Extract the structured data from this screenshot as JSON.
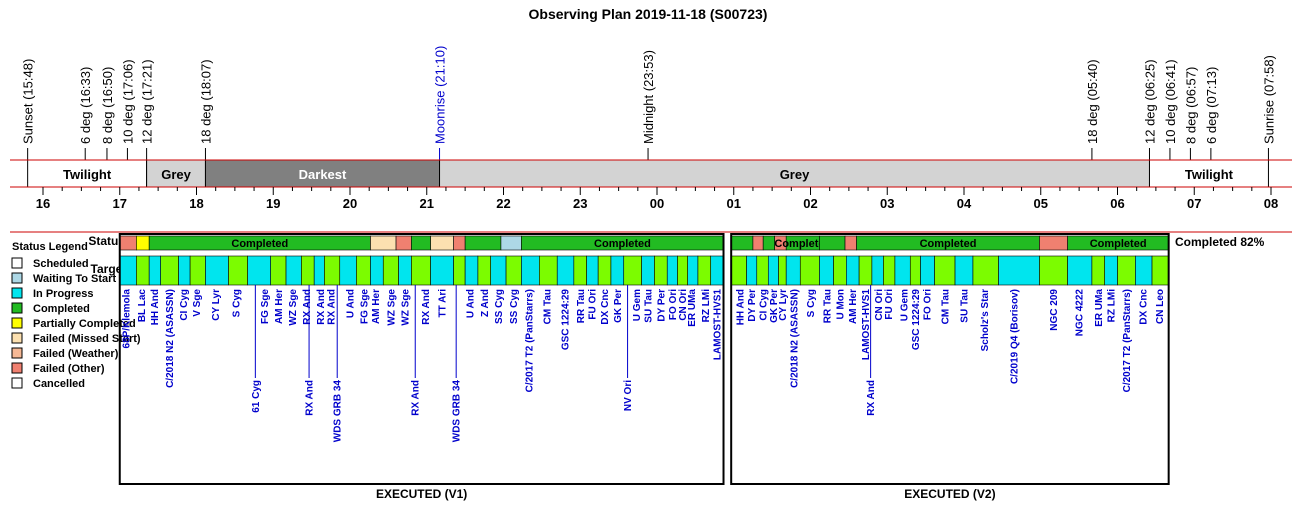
{
  "chart_data": {
    "type": "timeline",
    "title": "Observing Plan 2019-11-18 (S00723)",
    "events": [
      {
        "label": "Sunset (15:48)",
        "time": "15:48",
        "color": "#000000"
      },
      {
        "label": "6 deg (16:33)",
        "time": "16:33",
        "color": "#000000"
      },
      {
        "label": "8 deg (16:50)",
        "time": "16:50",
        "color": "#000000"
      },
      {
        "label": "10 deg (17:06)",
        "time": "17:06",
        "color": "#000000"
      },
      {
        "label": "12 deg (17:21)",
        "time": "17:21",
        "color": "#000000"
      },
      {
        "label": "18 deg (18:07)",
        "time": "18:07",
        "color": "#000000"
      },
      {
        "label": "Moonrise (21:10)",
        "time": "21:10",
        "color": "#0000cc"
      },
      {
        "label": "Midnight (23:53)",
        "time": "23:53",
        "color": "#000000"
      },
      {
        "label": "18 deg (05:40)",
        "time": "05:40",
        "color": "#000000"
      },
      {
        "label": "12 deg (06:25)",
        "time": "06:25",
        "color": "#000000"
      },
      {
        "label": "10 deg (06:41)",
        "time": "06:41",
        "color": "#000000"
      },
      {
        "label": "8 deg (06:57)",
        "time": "06:57",
        "color": "#000000"
      },
      {
        "label": "6 deg (07:13)",
        "time": "07:13",
        "color": "#000000"
      },
      {
        "label": "Sunrise (07:58)",
        "time": "07:58",
        "color": "#000000"
      }
    ],
    "sky_periods": [
      {
        "label": "Twilight",
        "start": "15:48",
        "end": "17:21",
        "color": "#ffffff",
        "text_color": "#000000"
      },
      {
        "label": "Grey",
        "start": "17:21",
        "end": "18:07",
        "color": "#d3d3d3",
        "text_color": "#000000"
      },
      {
        "label": "Darkest",
        "start": "18:07",
        "end": "21:10",
        "color": "#808080",
        "text_color": "#ffffff"
      },
      {
        "label": "Grey",
        "start": "21:10",
        "end": "06:25",
        "color": "#d3d3d3",
        "text_color": "#000000"
      },
      {
        "label": "Twilight",
        "start": "06:25",
        "end": "07:58",
        "color": "#ffffff",
        "text_color": "#000000"
      }
    ],
    "hour_ticks": [
      "16",
      "17",
      "18",
      "19",
      "20",
      "21",
      "22",
      "23",
      "00",
      "01",
      "02",
      "03",
      "04",
      "05",
      "06",
      "07",
      "08"
    ],
    "status_row_label": "Status",
    "targets_row_label": "Targets",
    "completion_text": "Completed 82%",
    "legend_title": "Status Legend",
    "legend": [
      {
        "label": "Scheduled",
        "color": "#ffffff"
      },
      {
        "label": "Waiting To Start",
        "color": "#add8e6"
      },
      {
        "label": "In Progress",
        "color": "#00e5ee"
      },
      {
        "label": "Completed",
        "color": "#22bb22"
      },
      {
        "label": "Partially Completed",
        "color": "#ffff00"
      },
      {
        "label": "Failed (Missed Start)",
        "color": "#fce0b0"
      },
      {
        "label": "Failed (Weather)",
        "color": "#f5b895"
      },
      {
        "label": "Failed (Other)",
        "color": "#f08070"
      },
      {
        "label": "Cancelled",
        "color": "#ffffff"
      }
    ],
    "status_segments": [
      {
        "start": "17:00",
        "end": "17:13",
        "status": "Failed (Other)",
        "label": ""
      },
      {
        "start": "17:13",
        "end": "17:23",
        "status": "Partially Completed",
        "label": ""
      },
      {
        "start": "17:23",
        "end": "20:16",
        "status": "Completed",
        "label": "Completed"
      },
      {
        "start": "20:16",
        "end": "20:36",
        "status": "Failed (Missed Start)",
        "label": ""
      },
      {
        "start": "20:36",
        "end": "20:48",
        "status": "Failed (Other)",
        "label": ""
      },
      {
        "start": "20:48",
        "end": "21:03",
        "status": "Completed",
        "label": ""
      },
      {
        "start": "21:03",
        "end": "21:21",
        "status": "Failed (Missed Start)",
        "label": ""
      },
      {
        "start": "21:21",
        "end": "21:30",
        "status": "Failed (Other)",
        "label": ""
      },
      {
        "start": "21:30",
        "end": "21:58",
        "status": "Completed",
        "label": ""
      },
      {
        "start": "21:58",
        "end": "22:14",
        "status": "Waiting To Start",
        "label": ""
      },
      {
        "start": "22:14",
        "end": "00:52",
        "status": "Completed",
        "label": "Completed"
      },
      {
        "start": "00:58",
        "end": "01:15",
        "status": "Completed",
        "label": ""
      },
      {
        "start": "01:15",
        "end": "01:23",
        "status": "Failed (Other)",
        "label": ""
      },
      {
        "start": "01:23",
        "end": "01:32",
        "status": "Completed",
        "label": ""
      },
      {
        "start": "01:32",
        "end": "01:41",
        "status": "Failed (Other)",
        "label": ""
      },
      {
        "start": "01:41",
        "end": "02:07",
        "status": "Completed",
        "label": "Completed"
      },
      {
        "start": "02:07",
        "end": "02:27",
        "status": "Completed",
        "label": ""
      },
      {
        "start": "02:27",
        "end": "02:36",
        "status": "Failed (Other)",
        "label": ""
      },
      {
        "start": "02:36",
        "end": "04:59",
        "status": "Completed",
        "label": "Completed"
      },
      {
        "start": "04:59",
        "end": "05:21",
        "status": "Failed (Other)",
        "label": ""
      },
      {
        "start": "05:21",
        "end": "06:40",
        "status": "Completed",
        "label": "Completed"
      }
    ],
    "executions": [
      {
        "label": "EXECUTED (V1)",
        "start": "17:00",
        "end": "00:52"
      },
      {
        "label": "EXECUTED (V2)",
        "start": "00:58",
        "end": "06:40"
      }
    ],
    "targets": [
      {
        "name": "68P/Klemola",
        "time": "17:05",
        "row": 0
      },
      {
        "name": "BL Lac",
        "time": "17:17",
        "row": 0
      },
      {
        "name": "HH And",
        "time": "17:27",
        "row": 0
      },
      {
        "name": "C/2018 N2 (ASASSN)",
        "time": "17:39",
        "row": 0
      },
      {
        "name": "CI Cyg",
        "time": "17:50",
        "row": 0
      },
      {
        "name": "V Sge",
        "time": "18:00",
        "row": 0
      },
      {
        "name": "CY Lyr",
        "time": "18:15",
        "row": 0
      },
      {
        "name": "S Cyg",
        "time": "18:31",
        "row": 0
      },
      {
        "name": "61 Cyg",
        "time": "18:46",
        "row": 1
      },
      {
        "name": "FG Sge",
        "time": "18:53",
        "row": 0
      },
      {
        "name": "AM Her",
        "time": "19:04",
        "row": 0
      },
      {
        "name": "WZ Sge",
        "time": "19:15",
        "row": 0
      },
      {
        "name": "RX And",
        "time": "19:26",
        "row": 0
      },
      {
        "name": "RX And",
        "time": "19:28",
        "row": 1
      },
      {
        "name": "RX And",
        "time": "19:37",
        "row": 0
      },
      {
        "name": "RX And",
        "time": "19:45",
        "row": 0
      },
      {
        "name": "WDS GRB 34",
        "time": "19:50",
        "row": 1
      },
      {
        "name": "U And",
        "time": "20:00",
        "row": 0
      },
      {
        "name": "FG Sge",
        "time": "20:11",
        "row": 0
      },
      {
        "name": "AM Her",
        "time": "20:20",
        "row": 0
      },
      {
        "name": "WZ Sge",
        "time": "20:32",
        "row": 0
      },
      {
        "name": "WZ Sge",
        "time": "20:43",
        "row": 0
      },
      {
        "name": "RX And",
        "time": "20:51",
        "row": 1
      },
      {
        "name": "RX And",
        "time": "20:59",
        "row": 0
      },
      {
        "name": "TT Ari",
        "time": "21:12",
        "row": 0
      },
      {
        "name": "WDS GRB 34",
        "time": "21:23",
        "row": 1
      },
      {
        "name": "U And",
        "time": "21:34",
        "row": 0
      },
      {
        "name": "Z And",
        "time": "21:45",
        "row": 0
      },
      {
        "name": "SS Cyg",
        "time": "21:56",
        "row": 0
      },
      {
        "name": "SS Cyg",
        "time": "22:08",
        "row": 0
      },
      {
        "name": "C/2017 T2 (PanStarrs)",
        "time": "22:20",
        "row": 0
      },
      {
        "name": "CM Tau",
        "time": "22:34",
        "row": 0
      },
      {
        "name": "GSC 1224:29",
        "time": "22:48",
        "row": 0
      },
      {
        "name": "RR Tau",
        "time": "23:00",
        "row": 0
      },
      {
        "name": "FU Ori",
        "time": "23:09",
        "row": 0
      },
      {
        "name": "DX Cnc",
        "time": "23:19",
        "row": 0
      },
      {
        "name": "GK Per",
        "time": "23:29",
        "row": 0
      },
      {
        "name": "NV Ori",
        "time": "23:37",
        "row": 1
      },
      {
        "name": "U Gem",
        "time": "23:44",
        "row": 0
      },
      {
        "name": "SU Tau",
        "time": "23:53",
        "row": 0
      },
      {
        "name": "DY Per",
        "time": "00:03",
        "row": 0
      },
      {
        "name": "FO Ori",
        "time": "00:12",
        "row": 0
      },
      {
        "name": "CN Ori",
        "time": "00:20",
        "row": 0
      },
      {
        "name": "ER UMa",
        "time": "00:27",
        "row": 0
      },
      {
        "name": "RZ LMi",
        "time": "00:38",
        "row": 0
      },
      {
        "name": "LAMOST-HVS1",
        "time": "00:47",
        "row": 0
      },
      {
        "name": "HH And",
        "time": "01:05",
        "row": 0
      },
      {
        "name": "DY Per",
        "time": "01:14",
        "row": 0
      },
      {
        "name": "CI Cyg",
        "time": "01:23",
        "row": 0
      },
      {
        "name": "GK Per",
        "time": "01:31",
        "row": 0
      },
      {
        "name": "CY Lyr",
        "time": "01:38",
        "row": 0
      },
      {
        "name": "C/2018 N2 (ASASSN)",
        "time": "01:47",
        "row": 0
      },
      {
        "name": "S Cyg",
        "time": "02:00",
        "row": 0
      },
      {
        "name": "RR Tau",
        "time": "02:13",
        "row": 0
      },
      {
        "name": "U Mon",
        "time": "02:23",
        "row": 0
      },
      {
        "name": "AM Her",
        "time": "02:33",
        "row": 0
      },
      {
        "name": "LAMOST-HVS1",
        "time": "02:43",
        "row": 0
      },
      {
        "name": "RX And",
        "time": "02:47",
        "row": 1
      },
      {
        "name": "CN Ori",
        "time": "02:53",
        "row": 0
      },
      {
        "name": "FU Ori",
        "time": "03:01",
        "row": 0
      },
      {
        "name": "U Gem",
        "time": "03:13",
        "row": 0
      },
      {
        "name": "GSC 1224:29",
        "time": "03:22",
        "row": 0
      },
      {
        "name": "FO Ori",
        "time": "03:31",
        "row": 0
      },
      {
        "name": "CM Tau",
        "time": "03:45",
        "row": 0
      },
      {
        "name": "SU Tau",
        "time": "04:00",
        "row": 0
      },
      {
        "name": "Scholz's Star",
        "time": "04:16",
        "row": 0
      },
      {
        "name": "C/2019 Q4 (Borisov)",
        "time": "04:39",
        "row": 0
      },
      {
        "name": "NGC 209",
        "time": "05:10",
        "row": 0
      },
      {
        "name": "NGC 4222",
        "time": "05:30",
        "row": 0
      },
      {
        "name": "ER UMa",
        "time": "05:45",
        "row": 0
      },
      {
        "name": "RZ LMi",
        "time": "05:55",
        "row": 0
      },
      {
        "name": "C/2017 T2 (PanStarrs)",
        "time": "06:07",
        "row": 0
      },
      {
        "name": "DX Cnc",
        "time": "06:20",
        "row": 0
      },
      {
        "name": "CN Leo",
        "time": "06:33",
        "row": 0
      }
    ],
    "target_bar_slots": [
      {
        "start": "17:00",
        "end": "17:13",
        "color": "#00e5ee"
      },
      {
        "start": "17:13",
        "end": "17:23",
        "color": "#7cfc00"
      },
      {
        "start": "17:23",
        "end": "17:32",
        "color": "#00e5ee"
      },
      {
        "start": "17:32",
        "end": "17:46",
        "color": "#7cfc00"
      },
      {
        "start": "17:46",
        "end": "17:55",
        "color": "#00e5ee"
      },
      {
        "start": "17:55",
        "end": "18:07",
        "color": "#7cfc00"
      },
      {
        "start": "18:07",
        "end": "18:25",
        "color": "#00e5ee"
      },
      {
        "start": "18:25",
        "end": "18:40",
        "color": "#7cfc00"
      },
      {
        "start": "18:40",
        "end": "18:58",
        "color": "#00e5ee"
      },
      {
        "start": "18:58",
        "end": "19:10",
        "color": "#7cfc00"
      },
      {
        "start": "19:10",
        "end": "19:22",
        "color": "#00e5ee"
      },
      {
        "start": "19:22",
        "end": "19:32",
        "color": "#7cfc00"
      },
      {
        "start": "19:32",
        "end": "19:40",
        "color": "#00e5ee"
      },
      {
        "start": "19:40",
        "end": "19:52",
        "color": "#7cfc00"
      },
      {
        "start": "19:52",
        "end": "20:05",
        "color": "#00e5ee"
      },
      {
        "start": "20:05",
        "end": "20:16",
        "color": "#7cfc00"
      },
      {
        "start": "20:16",
        "end": "20:26",
        "color": "#00e5ee"
      },
      {
        "start": "20:26",
        "end": "20:38",
        "color": "#7cfc00"
      },
      {
        "start": "20:38",
        "end": "20:48",
        "color": "#00e5ee"
      },
      {
        "start": "20:48",
        "end": "21:03",
        "color": "#7cfc00"
      },
      {
        "start": "21:03",
        "end": "21:21",
        "color": "#00e5ee"
      },
      {
        "start": "21:21",
        "end": "21:30",
        "color": "#7cfc00"
      },
      {
        "start": "21:30",
        "end": "21:40",
        "color": "#00e5ee"
      },
      {
        "start": "21:40",
        "end": "21:50",
        "color": "#7cfc00"
      },
      {
        "start": "21:50",
        "end": "22:02",
        "color": "#00e5ee"
      },
      {
        "start": "22:02",
        "end": "22:14",
        "color": "#7cfc00"
      },
      {
        "start": "22:14",
        "end": "22:28",
        "color": "#00e5ee"
      },
      {
        "start": "22:28",
        "end": "22:42",
        "color": "#7cfc00"
      },
      {
        "start": "22:42",
        "end": "22:55",
        "color": "#00e5ee"
      },
      {
        "start": "22:55",
        "end": "23:05",
        "color": "#7cfc00"
      },
      {
        "start": "23:05",
        "end": "23:14",
        "color": "#00e5ee"
      },
      {
        "start": "23:14",
        "end": "23:24",
        "color": "#7cfc00"
      },
      {
        "start": "23:24",
        "end": "23:34",
        "color": "#00e5ee"
      },
      {
        "start": "23:34",
        "end": "23:48",
        "color": "#7cfc00"
      },
      {
        "start": "23:48",
        "end": "23:58",
        "color": "#00e5ee"
      },
      {
        "start": "23:58",
        "end": "00:08",
        "color": "#7cfc00"
      },
      {
        "start": "00:08",
        "end": "00:16",
        "color": "#00e5ee"
      },
      {
        "start": "00:16",
        "end": "00:24",
        "color": "#7cfc00"
      },
      {
        "start": "00:24",
        "end": "00:32",
        "color": "#00e5ee"
      },
      {
        "start": "00:32",
        "end": "00:42",
        "color": "#7cfc00"
      },
      {
        "start": "00:42",
        "end": "00:52",
        "color": "#00e5ee"
      },
      {
        "start": "00:58",
        "end": "01:10",
        "color": "#7cfc00"
      },
      {
        "start": "01:10",
        "end": "01:18",
        "color": "#00e5ee"
      },
      {
        "start": "01:18",
        "end": "01:27",
        "color": "#7cfc00"
      },
      {
        "start": "01:27",
        "end": "01:35",
        "color": "#00e5ee"
      },
      {
        "start": "01:35",
        "end": "01:41",
        "color": "#7cfc00"
      },
      {
        "start": "01:41",
        "end": "01:52",
        "color": "#00e5ee"
      },
      {
        "start": "01:52",
        "end": "02:07",
        "color": "#7cfc00"
      },
      {
        "start": "02:07",
        "end": "02:18",
        "color": "#00e5ee"
      },
      {
        "start": "02:18",
        "end": "02:28",
        "color": "#7cfc00"
      },
      {
        "start": "02:28",
        "end": "02:38",
        "color": "#00e5ee"
      },
      {
        "start": "02:38",
        "end": "02:48",
        "color": "#7cfc00"
      },
      {
        "start": "02:48",
        "end": "02:57",
        "color": "#00e5ee"
      },
      {
        "start": "02:57",
        "end": "03:06",
        "color": "#7cfc00"
      },
      {
        "start": "03:06",
        "end": "03:18",
        "color": "#00e5ee"
      },
      {
        "start": "03:18",
        "end": "03:26",
        "color": "#7cfc00"
      },
      {
        "start": "03:26",
        "end": "03:37",
        "color": "#00e5ee"
      },
      {
        "start": "03:37",
        "end": "03:53",
        "color": "#7cfc00"
      },
      {
        "start": "03:53",
        "end": "04:07",
        "color": "#00e5ee"
      },
      {
        "start": "04:07",
        "end": "04:27",
        "color": "#7cfc00"
      },
      {
        "start": "04:27",
        "end": "04:59",
        "color": "#00e5ee"
      },
      {
        "start": "04:59",
        "end": "05:21",
        "color": "#7cfc00"
      },
      {
        "start": "05:21",
        "end": "05:40",
        "color": "#00e5ee"
      },
      {
        "start": "05:40",
        "end": "05:50",
        "color": "#7cfc00"
      },
      {
        "start": "05:50",
        "end": "06:00",
        "color": "#00e5ee"
      },
      {
        "start": "06:00",
        "end": "06:14",
        "color": "#7cfc00"
      },
      {
        "start": "06:14",
        "end": "06:27",
        "color": "#00e5ee"
      },
      {
        "start": "06:27",
        "end": "06:40",
        "color": "#7cfc00"
      }
    ]
  }
}
